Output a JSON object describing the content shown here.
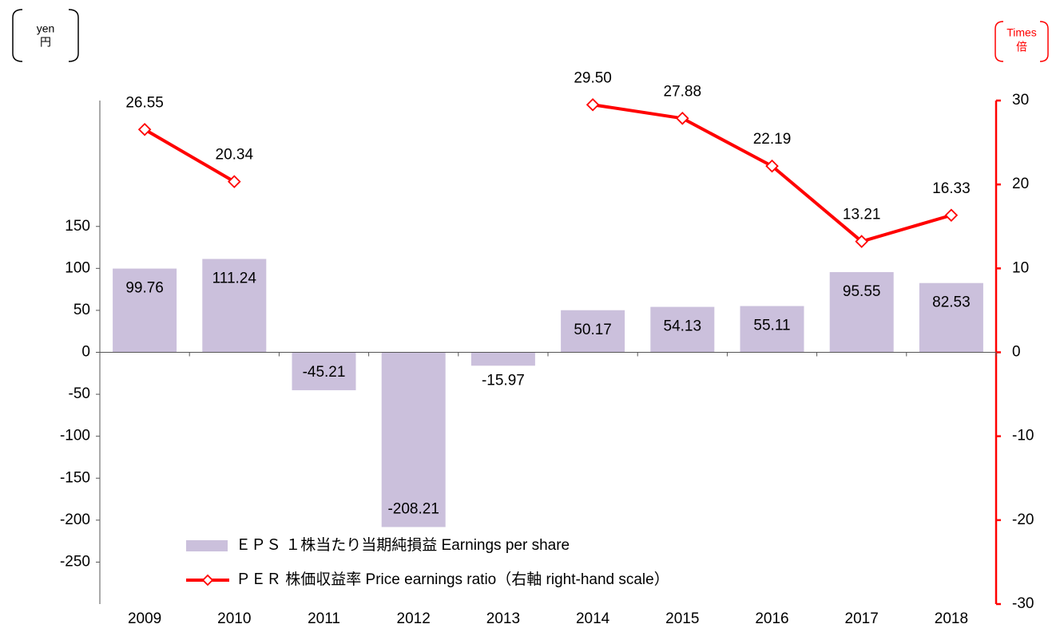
{
  "chart_data": {
    "type": "bar_line",
    "y_unit": [
      "yen",
      "円"
    ],
    "y2_unit": [
      "Times",
      "倍"
    ],
    "categories": [
      "2009",
      "2010",
      "2011",
      "2012",
      "2013",
      "2014",
      "2015",
      "2016",
      "2017",
      "2018"
    ],
    "series": [
      {
        "name": "ＥＰＳ １株当たり当期純損益 Earnings per share",
        "type": "bar",
        "color": "#cbc0dc",
        "values": [
          99.76,
          111.24,
          -45.21,
          -208.21,
          -15.97,
          50.17,
          54.13,
          55.11,
          95.55,
          82.53
        ]
      },
      {
        "name": "ＰＥＲ 株価収益率 Price earnings ratio（右軸 right-hand scale）",
        "type": "line",
        "color": "#ff0000",
        "axis": "y2",
        "values": [
          26.55,
          20.34,
          null,
          null,
          null,
          29.5,
          27.88,
          22.19,
          13.21,
          16.33
        ],
        "value_labels": [
          "26.55",
          "20.34",
          null,
          null,
          null,
          "29.50",
          "27.88",
          "22.19",
          "13.21",
          "16.33"
        ]
      }
    ],
    "ylim": [
      -300,
      300
    ],
    "yticks": [
      -250,
      -200,
      -150,
      -100,
      -50,
      0,
      50,
      100,
      150
    ],
    "y2lim": [
      -30,
      30
    ],
    "y2ticks": [
      -30,
      -20,
      -10,
      0,
      10,
      20,
      30
    ]
  }
}
